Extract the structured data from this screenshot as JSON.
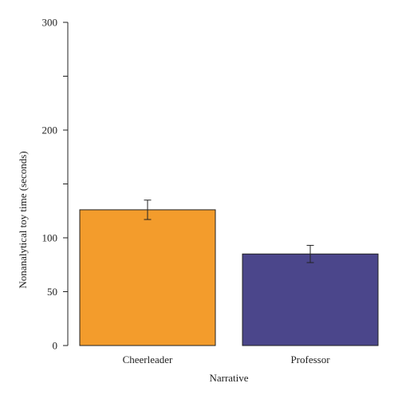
{
  "chart_data": {
    "type": "bar",
    "categories": [
      "Cheerleader",
      "Professor"
    ],
    "values": [
      126,
      85
    ],
    "error": [
      9,
      8
    ],
    "colors": [
      "#F39C2C",
      "#4B468B"
    ],
    "xlabel": "Narrative",
    "ylabel": "Nonanalytical toy time (seconds)",
    "ylim": [
      0,
      300
    ],
    "yticks": [
      {
        "value": 0,
        "label": "0"
      },
      {
        "value": 50,
        "label": "50"
      },
      {
        "value": 100,
        "label": "100"
      },
      {
        "value": 150,
        "label": ""
      },
      {
        "value": 200,
        "label": "200"
      },
      {
        "value": 250,
        "label": ""
      },
      {
        "value": 300,
        "label": "300"
      }
    ],
    "grid": false,
    "legend": "none"
  }
}
